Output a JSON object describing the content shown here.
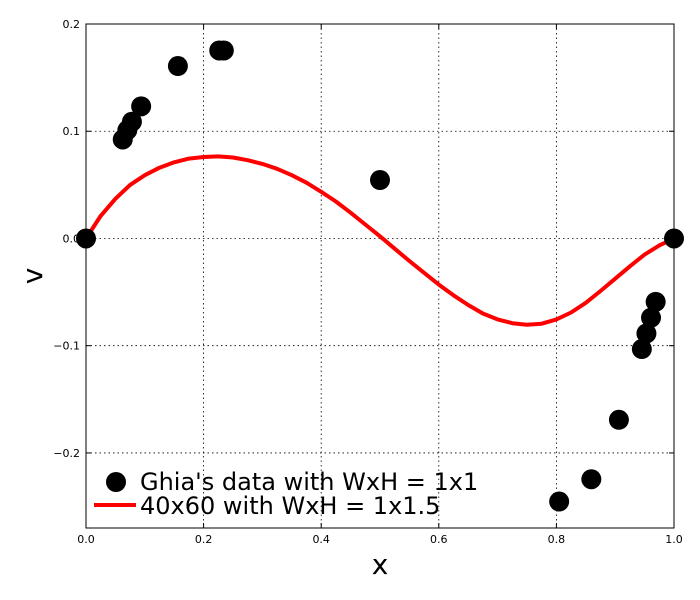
{
  "chart_data": {
    "type": "scatter",
    "xlabel": "x",
    "ylabel": "v",
    "xlim": [
      0.0,
      1.0
    ],
    "ylim": [
      -0.27,
      0.2
    ],
    "xticks": [
      0.0,
      0.2,
      0.4,
      0.6,
      0.8,
      1.0
    ],
    "yticks": [
      -0.2,
      -0.1,
      0.0,
      0.1,
      0.2
    ],
    "xtick_labels": [
      "0.0",
      "0.2",
      "0.4",
      "0.6",
      "0.8",
      "1.0"
    ],
    "ytick_labels": [
      "−0.2",
      "−0.1",
      "0.0",
      "0.1",
      "0.2"
    ],
    "grid": true,
    "legend_position": "lower-left",
    "series": [
      {
        "name": "Ghia's data with WxH = 1x1",
        "kind": "scatter",
        "color": "#000000",
        "x": [
          0.0,
          0.0625,
          0.0703,
          0.0781,
          0.0938,
          0.1563,
          0.2266,
          0.2344,
          0.5,
          0.8047,
          0.8594,
          0.9063,
          0.9453,
          0.9531,
          0.9609,
          0.9688,
          1.0
        ],
        "y": [
          0.0,
          0.0923,
          0.101,
          0.1089,
          0.1232,
          0.1608,
          0.1753,
          0.1753,
          0.0545,
          -0.2453,
          -0.2245,
          -0.1691,
          -0.1031,
          -0.0886,
          -0.0739,
          -0.0591,
          0.0
        ]
      },
      {
        "name": "40x60 with WxH = 1x1.5",
        "kind": "line",
        "color": "#ff0000",
        "x": [
          0.0,
          0.025,
          0.05,
          0.075,
          0.1,
          0.125,
          0.15,
          0.175,
          0.2,
          0.225,
          0.25,
          0.275,
          0.3,
          0.325,
          0.35,
          0.375,
          0.4,
          0.425,
          0.45,
          0.475,
          0.5,
          0.525,
          0.55,
          0.575,
          0.6,
          0.625,
          0.65,
          0.675,
          0.7,
          0.725,
          0.75,
          0.775,
          0.8,
          0.825,
          0.85,
          0.875,
          0.9,
          0.925,
          0.95,
          0.975,
          1.0
        ],
        "y": [
          0.0,
          0.021,
          0.037,
          0.05,
          0.059,
          0.066,
          0.071,
          0.0745,
          0.076,
          0.0765,
          0.0755,
          0.073,
          0.0695,
          0.065,
          0.059,
          0.052,
          0.0435,
          0.0345,
          0.024,
          0.013,
          0.002,
          -0.0095,
          -0.021,
          -0.032,
          -0.043,
          -0.053,
          -0.062,
          -0.07,
          -0.0755,
          -0.079,
          -0.0805,
          -0.0795,
          -0.0755,
          -0.069,
          -0.06,
          -0.049,
          -0.0375,
          -0.026,
          -0.015,
          -0.0065,
          0.0
        ]
      }
    ]
  }
}
